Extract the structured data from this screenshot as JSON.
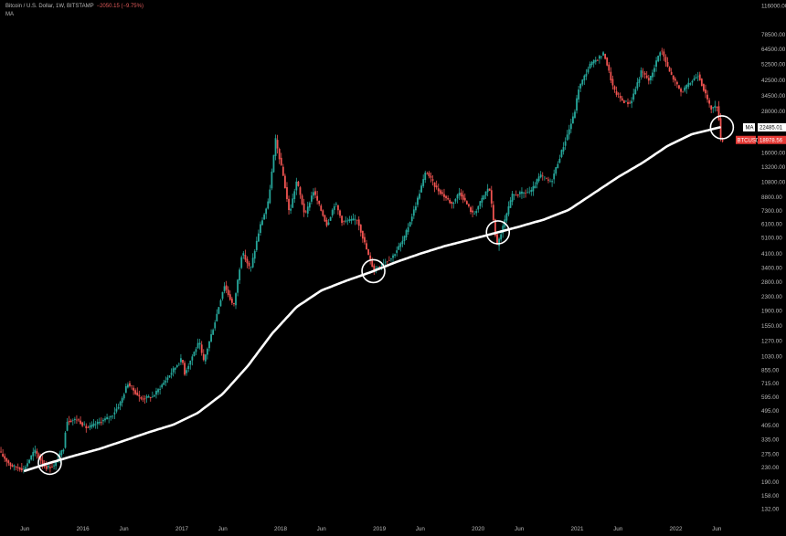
{
  "header": {
    "symbol": "Bitcoin / U.S. Dollar, 1W, BITSTAMP",
    "change": "−2050.15 (−9.75%)",
    "indicator": "MA"
  },
  "colors": {
    "background": "#000000",
    "up": "#26a69a",
    "down": "#ef5350",
    "ma_line": "#ffffff",
    "price_badge": "#e53935"
  },
  "chart_data": {
    "type": "candlestick",
    "y_scale": "log",
    "ylim": [
      110,
      125000
    ],
    "xlim": [
      "2015-03-01",
      "2022-10-20"
    ],
    "y_ticks": [
      "116000.00",
      "78500.00",
      "64500.00",
      "52500.00",
      "42500.00",
      "34500.00",
      "28000.00",
      "22000.00",
      "16000.00",
      "13200.00",
      "10800.00",
      "8800.00",
      "7300.00",
      "6100.00",
      "5100.00",
      "4100.00",
      "3400.00",
      "2800.00",
      "2300.00",
      "1900.00",
      "1550.00",
      "1270.00",
      "1030.00",
      "855.00",
      "715.00",
      "595.00",
      "495.00",
      "405.00",
      "335.00",
      "275.00",
      "230.00",
      "190.00",
      "158.00",
      "132.00"
    ],
    "x_ticks": [
      {
        "label": "Jun",
        "date": "2015-06-01"
      },
      {
        "label": "2016",
        "date": "2016-01-01"
      },
      {
        "label": "Jun",
        "date": "2016-06-01"
      },
      {
        "label": "2017",
        "date": "2017-01-01"
      },
      {
        "label": "Jun",
        "date": "2017-06-01"
      },
      {
        "label": "2018",
        "date": "2018-01-01"
      },
      {
        "label": "Jun",
        "date": "2018-06-01"
      },
      {
        "label": "2019",
        "date": "2019-01-01"
      },
      {
        "label": "Jun",
        "date": "2019-06-01"
      },
      {
        "label": "2020",
        "date": "2020-01-01"
      },
      {
        "label": "Jun",
        "date": "2020-06-01"
      },
      {
        "label": "2021",
        "date": "2021-01-01"
      },
      {
        "label": "Jun",
        "date": "2021-06-01"
      },
      {
        "label": "2022",
        "date": "2022-01-01"
      },
      {
        "label": "Jun",
        "date": "2022-06-01"
      }
    ],
    "price_path": [
      [
        "2015-03-01",
        285
      ],
      [
        "2015-04-15",
        235
      ],
      [
        "2015-06-01",
        225
      ],
      [
        "2015-07-10",
        290
      ],
      [
        "2015-08-20",
        230
      ],
      [
        "2015-09-20",
        235
      ],
      [
        "2015-10-25",
        300
      ],
      [
        "2015-11-05",
        430
      ],
      [
        "2015-12-15",
        440
      ],
      [
        "2016-01-20",
        390
      ],
      [
        "2016-03-01",
        420
      ],
      [
        "2016-04-20",
        460
      ],
      [
        "2016-05-25",
        560
      ],
      [
        "2016-06-18",
        720
      ],
      [
        "2016-08-05",
        580
      ],
      [
        "2016-09-20",
        600
      ],
      [
        "2016-11-01",
        730
      ],
      [
        "2016-12-20",
        930
      ],
      [
        "2017-01-05",
        1000
      ],
      [
        "2017-01-15",
        820
      ],
      [
        "2017-02-20",
        1100
      ],
      [
        "2017-03-10",
        1250
      ],
      [
        "2017-03-25",
        950
      ],
      [
        "2017-05-05",
        1600
      ],
      [
        "2017-06-10",
        2700
      ],
      [
        "2017-07-15",
        2000
      ],
      [
        "2017-08-15",
        4200
      ],
      [
        "2017-09-15",
        3300
      ],
      [
        "2017-10-20",
        5900
      ],
      [
        "2017-11-20",
        8200
      ],
      [
        "2017-12-17",
        19000
      ],
      [
        "2018-01-15",
        11500
      ],
      [
        "2018-02-06",
        7000
      ],
      [
        "2018-03-05",
        11000
      ],
      [
        "2018-04-05",
        6800
      ],
      [
        "2018-05-05",
        9600
      ],
      [
        "2018-06-25",
        6000
      ],
      [
        "2018-07-25",
        8200
      ],
      [
        "2018-08-20",
        6300
      ],
      [
        "2018-10-15",
        6500
      ],
      [
        "2018-11-25",
        4000
      ],
      [
        "2018-12-15",
        3300
      ],
      [
        "2019-01-15",
        3600
      ],
      [
        "2019-02-20",
        3900
      ],
      [
        "2019-04-05",
        5000
      ],
      [
        "2019-05-20",
        8000
      ],
      [
        "2019-06-26",
        12500
      ],
      [
        "2019-08-01",
        10000
      ],
      [
        "2019-09-30",
        8000
      ],
      [
        "2019-10-28",
        9400
      ],
      [
        "2019-12-18",
        6900
      ],
      [
        "2020-02-14",
        10200
      ],
      [
        "2020-03-14",
        4500
      ],
      [
        "2020-05-10",
        9000
      ],
      [
        "2020-07-20",
        9500
      ],
      [
        "2020-08-20",
        11800
      ],
      [
        "2020-09-30",
        10700
      ],
      [
        "2020-11-20",
        18500
      ],
      [
        "2020-12-25",
        27000
      ],
      [
        "2021-01-10",
        38000
      ],
      [
        "2021-02-20",
        52000
      ],
      [
        "2021-04-14",
        61000
      ],
      [
        "2021-05-20",
        37000
      ],
      [
        "2021-06-22",
        32000
      ],
      [
        "2021-07-20",
        31000
      ],
      [
        "2021-08-30",
        48000
      ],
      [
        "2021-09-28",
        42000
      ],
      [
        "2021-11-10",
        65000
      ],
      [
        "2021-12-10",
        48000
      ],
      [
        "2022-01-24",
        36000
      ],
      [
        "2022-03-28",
        46000
      ],
      [
        "2022-05-12",
        29000
      ],
      [
        "2022-06-08",
        30000
      ],
      [
        "2022-06-19",
        19000
      ]
    ],
    "ma_path": [
      [
        "2015-06-01",
        220
      ],
      [
        "2015-09-01",
        245
      ],
      [
        "2015-12-01",
        270
      ],
      [
        "2016-03-01",
        295
      ],
      [
        "2016-06-01",
        330
      ],
      [
        "2016-09-01",
        370
      ],
      [
        "2016-12-01",
        410
      ],
      [
        "2017-03-01",
        480
      ],
      [
        "2017-06-01",
        620
      ],
      [
        "2017-09-01",
        900
      ],
      [
        "2017-12-01",
        1400
      ],
      [
        "2018-03-01",
        2000
      ],
      [
        "2018-06-01",
        2500
      ],
      [
        "2018-09-01",
        2850
      ],
      [
        "2018-12-01",
        3200
      ],
      [
        "2019-03-01",
        3650
      ],
      [
        "2019-06-01",
        4100
      ],
      [
        "2019-09-01",
        4550
      ],
      [
        "2019-12-01",
        4950
      ],
      [
        "2020-03-01",
        5400
      ],
      [
        "2020-06-01",
        5900
      ],
      [
        "2020-09-01",
        6500
      ],
      [
        "2020-12-01",
        7400
      ],
      [
        "2021-03-01",
        9200
      ],
      [
        "2021-06-01",
        11500
      ],
      [
        "2021-09-01",
        14000
      ],
      [
        "2021-12-01",
        17500
      ],
      [
        "2022-03-01",
        20500
      ],
      [
        "2022-06-12",
        22485
      ]
    ],
    "highlight_circles": [
      "2015-09-01",
      "2018-12-10",
      "2020-03-14",
      "2022-06-20"
    ],
    "badges": {
      "ma_label": "MA",
      "ma_value": "22485.01",
      "price_label": "BTCUSD",
      "price_value": "18978.56"
    }
  }
}
